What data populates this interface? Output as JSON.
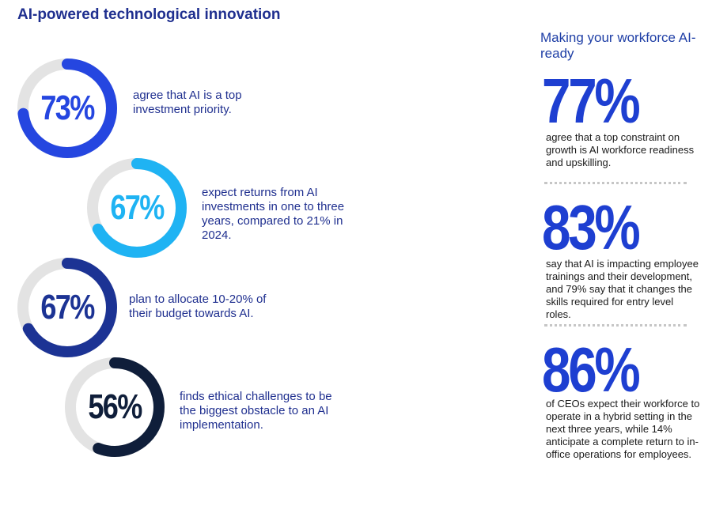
{
  "title": "AI-powered technological innovation",
  "chart_data": {
    "type": "donut",
    "title": "AI-powered technological innovation",
    "items": [
      {
        "value": 73,
        "label": "73%",
        "description": "agree that AI is a top investment priority.",
        "color": "#2546e0"
      },
      {
        "value": 67,
        "label": "67%",
        "description": "expect returns from AI investments in one to three years, compared to 21% in 2024.",
        "color": "#1fb3f3"
      },
      {
        "value": 67,
        "label": "67%",
        "description": "plan to allocate 10-20% of their budget towards AI.",
        "color": "#1c3394"
      },
      {
        "value": 56,
        "label": "56%",
        "description": "finds ethical challenges to be the biggest obstacle to an AI implementation.",
        "color": "#0f1e3a"
      }
    ],
    "track_color": "#e3e3e3"
  },
  "sidebar": {
    "title": "Making your workforce AI-ready",
    "stats": [
      {
        "value": "77%",
        "text": "agree that a top constraint on growth is AI workforce readiness and upskilling."
      },
      {
        "value": "83%",
        "text": "say that AI is impacting employee trainings and their development, and 79% say that it changes the skills required for entry level roles."
      },
      {
        "value": "86%",
        "text": "of CEOs expect their workforce to operate in a hybrid setting in the next three years, while 14% anticipate a complete return to in-office operations for employees."
      }
    ]
  }
}
